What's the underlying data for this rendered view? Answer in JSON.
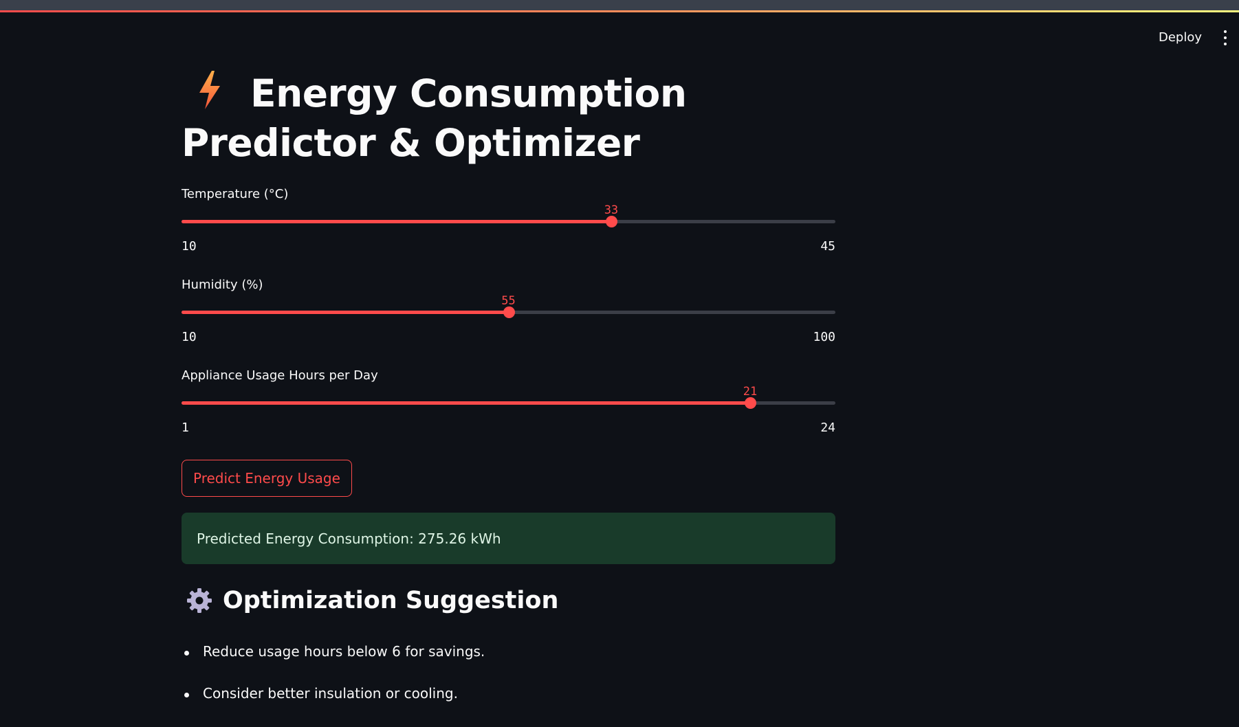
{
  "header": {
    "deploy_label": "Deploy",
    "menu_icon": "more-vert-icon"
  },
  "title": {
    "icon": "lightning-bolt-icon",
    "text": "Energy Consumption Predictor & Optimizer"
  },
  "sliders": [
    {
      "label": "Temperature (°C)",
      "min": 10,
      "max": 45,
      "value": 33
    },
    {
      "label": "Humidity (%)",
      "min": 10,
      "max": 100,
      "value": 55
    },
    {
      "label": "Appliance Usage Hours per Day",
      "min": 1,
      "max": 24,
      "value": 21
    }
  ],
  "predict_button": {
    "label": "Predict Energy Usage"
  },
  "result": {
    "text": "Predicted Energy Consumption: 275.26 kWh"
  },
  "optimization": {
    "icon": "gear-icon",
    "heading": "Optimization Suggestion",
    "items": [
      "Reduce usage hours below 6 for savings.",
      "Consider better insulation or cooling."
    ]
  },
  "colors": {
    "background": "#0e1117",
    "accent": "#ff4b4b",
    "success_bg": "#193b2a",
    "track": "#3b3e47"
  }
}
